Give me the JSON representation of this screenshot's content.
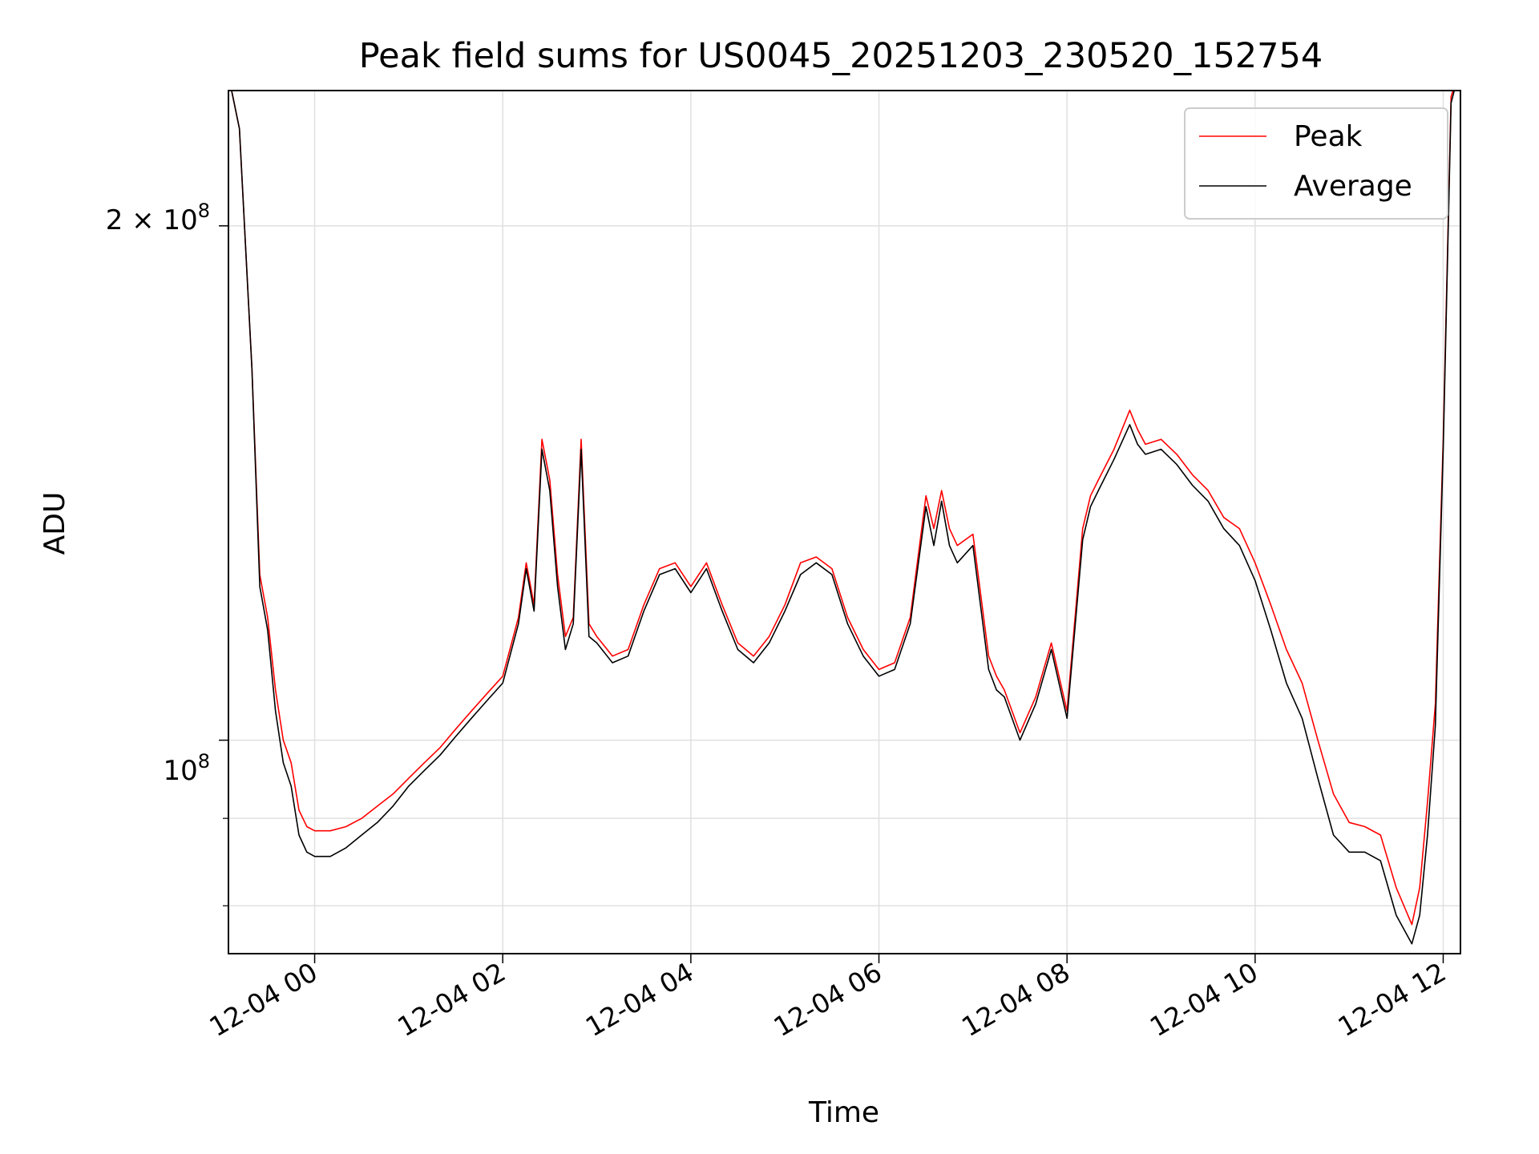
{
  "chart_data": {
    "type": "line",
    "title": "Peak field sums for US0045_20251203_230520_152754",
    "xlabel": "Time",
    "ylabel": "ADU",
    "yscale": "log",
    "xlim": [
      "12-03 23:05",
      "12-04 12:11"
    ],
    "ylim": [
      75000000,
      240000000
    ],
    "grid": true,
    "legend_position": "top-right",
    "x_ticks": [
      "12-04 00",
      "12-04 02",
      "12-04 04",
      "12-04 06",
      "12-04 08",
      "12-04 10",
      "12-04 12"
    ],
    "y_tick_labels": {
      "major_2e8": "2 × 10",
      "major_2e8_exp": "8",
      "major_1e8": "10",
      "major_1e8_exp": "8"
    },
    "series": [
      {
        "name": "Peak",
        "color": "#ff0000",
        "x": [
          "12-03 23:05",
          "12-03 23:12",
          "12-03 23:20",
          "12-03 23:25",
          "12-03 23:30",
          "12-03 23:35",
          "12-03 23:40",
          "12-03 23:45",
          "12-03 23:50",
          "12-03 23:55",
          "12-04 00:00",
          "12-04 00:10",
          "12-04 00:20",
          "12-04 00:30",
          "12-04 00:40",
          "12-04 00:50",
          "12-04 01:00",
          "12-04 01:10",
          "12-04 01:20",
          "12-04 01:30",
          "12-04 01:40",
          "12-04 01:50",
          "12-04 02:00",
          "12-04 02:10",
          "12-04 02:15",
          "12-04 02:20",
          "12-04 02:25",
          "12-04 02:30",
          "12-04 02:35",
          "12-04 02:40",
          "12-04 02:45",
          "12-04 02:50",
          "12-04 02:55",
          "12-04 03:00",
          "12-04 03:10",
          "12-04 03:20",
          "12-04 03:30",
          "12-04 03:40",
          "12-04 03:50",
          "12-04 04:00",
          "12-04 04:10",
          "12-04 04:20",
          "12-04 04:30",
          "12-04 04:40",
          "12-04 04:50",
          "12-04 05:00",
          "12-04 05:10",
          "12-04 05:20",
          "12-04 05:30",
          "12-04 05:40",
          "12-04 05:50",
          "12-04 06:00",
          "12-04 06:10",
          "12-04 06:20",
          "12-04 06:30",
          "12-04 06:35",
          "12-04 06:40",
          "12-04 06:45",
          "12-04 06:50",
          "12-04 07:00",
          "12-04 07:10",
          "12-04 07:15",
          "12-04 07:20",
          "12-04 07:30",
          "12-04 07:40",
          "12-04 07:50",
          "12-04 08:00",
          "12-04 08:10",
          "12-04 08:15",
          "12-04 08:20",
          "12-04 08:30",
          "12-04 08:40",
          "12-04 08:45",
          "12-04 08:50",
          "12-04 09:00",
          "12-04 09:10",
          "12-04 09:20",
          "12-04 09:30",
          "12-04 09:40",
          "12-04 09:50",
          "12-04 10:00",
          "12-04 10:10",
          "12-04 10:20",
          "12-04 10:30",
          "12-04 10:40",
          "12-04 10:50",
          "12-04 11:00",
          "12-04 11:10",
          "12-04 11:20",
          "12-04 11:30",
          "12-04 11:40",
          "12-04 11:45",
          "12-04 11:50",
          "12-04 11:55",
          "12-04 12:00",
          "12-04 12:05",
          "12-04 12:11"
        ],
        "values": [
          245000000,
          228000000,
          165000000,
          125000000,
          118000000,
          107000000,
          100000000,
          97000000,
          91000000,
          89000000,
          88500000,
          88500000,
          89000000,
          90000000,
          91500000,
          93000000,
          95000000,
          97000000,
          99000000,
          101500000,
          104000000,
          106500000,
          109000000,
          118000000,
          127000000,
          120000000,
          150000000,
          142000000,
          125000000,
          115000000,
          118000000,
          150000000,
          117000000,
          115000000,
          112000000,
          113000000,
          120000000,
          126000000,
          127000000,
          123000000,
          127000000,
          120000000,
          114000000,
          112000000,
          115000000,
          120000000,
          127000000,
          128000000,
          126000000,
          118000000,
          113000000,
          110000000,
          111000000,
          118000000,
          139000000,
          133000000,
          140000000,
          133000000,
          130000000,
          132000000,
          112000000,
          109000000,
          107000000,
          101000000,
          106000000,
          114000000,
          104000000,
          133000000,
          139000000,
          142000000,
          148000000,
          156000000,
          152000000,
          149000000,
          150000000,
          147000000,
          143000000,
          140000000,
          135000000,
          133000000,
          127000000,
          120000000,
          113000000,
          108000000,
          100000000,
          93000000,
          89500000,
          89000000,
          88000000,
          82000000,
          78000000,
          82000000,
          92000000,
          105000000,
          150000000,
          238000000,
          248000000
        ]
      },
      {
        "name": "Average",
        "color": "#000000",
        "x": [
          "12-03 23:05",
          "12-03 23:12",
          "12-03 23:20",
          "12-03 23:25",
          "12-03 23:30",
          "12-03 23:35",
          "12-03 23:40",
          "12-03 23:45",
          "12-03 23:50",
          "12-03 23:55",
          "12-04 00:00",
          "12-04 00:10",
          "12-04 00:20",
          "12-04 00:30",
          "12-04 00:40",
          "12-04 00:50",
          "12-04 01:00",
          "12-04 01:10",
          "12-04 01:20",
          "12-04 01:30",
          "12-04 01:40",
          "12-04 01:50",
          "12-04 02:00",
          "12-04 02:10",
          "12-04 02:15",
          "12-04 02:20",
          "12-04 02:25",
          "12-04 02:30",
          "12-04 02:35",
          "12-04 02:40",
          "12-04 02:45",
          "12-04 02:50",
          "12-04 02:55",
          "12-04 03:00",
          "12-04 03:10",
          "12-04 03:20",
          "12-04 03:30",
          "12-04 03:40",
          "12-04 03:50",
          "12-04 04:00",
          "12-04 04:10",
          "12-04 04:20",
          "12-04 04:30",
          "12-04 04:40",
          "12-04 04:50",
          "12-04 05:00",
          "12-04 05:10",
          "12-04 05:20",
          "12-04 05:30",
          "12-04 05:40",
          "12-04 05:50",
          "12-04 06:00",
          "12-04 06:10",
          "12-04 06:20",
          "12-04 06:30",
          "12-04 06:35",
          "12-04 06:40",
          "12-04 06:45",
          "12-04 06:50",
          "12-04 07:00",
          "12-04 07:10",
          "12-04 07:15",
          "12-04 07:20",
          "12-04 07:30",
          "12-04 07:40",
          "12-04 07:50",
          "12-04 08:00",
          "12-04 08:10",
          "12-04 08:15",
          "12-04 08:20",
          "12-04 08:30",
          "12-04 08:40",
          "12-04 08:45",
          "12-04 08:50",
          "12-04 09:00",
          "12-04 09:10",
          "12-04 09:20",
          "12-04 09:30",
          "12-04 09:40",
          "12-04 09:50",
          "12-04 10:00",
          "12-04 10:10",
          "12-04 10:20",
          "12-04 10:30",
          "12-04 10:40",
          "12-04 10:50",
          "12-04 11:00",
          "12-04 11:10",
          "12-04 11:20",
          "12-04 11:30",
          "12-04 11:40",
          "12-04 11:45",
          "12-04 11:50",
          "12-04 11:55",
          "12-04 12:00",
          "12-04 12:05",
          "12-04 12:11"
        ],
        "values": [
          245000000,
          228000000,
          165000000,
          123000000,
          116000000,
          104000000,
          97000000,
          94000000,
          88000000,
          86000000,
          85500000,
          85500000,
          86500000,
          88000000,
          89500000,
          91500000,
          94000000,
          96000000,
          98000000,
          100500000,
          103000000,
          105500000,
          108000000,
          117000000,
          126000000,
          119000000,
          148000000,
          140000000,
          123000000,
          113000000,
          117000000,
          148000000,
          115000000,
          114000000,
          111000000,
          112000000,
          119000000,
          125000000,
          126000000,
          122000000,
          126000000,
          119000000,
          113000000,
          111000000,
          114000000,
          119000000,
          125000000,
          127000000,
          125000000,
          117000000,
          112000000,
          109000000,
          110000000,
          117000000,
          137000000,
          130000000,
          138000000,
          130000000,
          127000000,
          130000000,
          110000000,
          107000000,
          106000000,
          100000000,
          105000000,
          113000000,
          103000000,
          131000000,
          137000000,
          140000000,
          146000000,
          153000000,
          149000000,
          147000000,
          148000000,
          145000000,
          141000000,
          138000000,
          133000000,
          130000000,
          124000000,
          116000000,
          108000000,
          103000000,
          95000000,
          88000000,
          86000000,
          86000000,
          85000000,
          79000000,
          76000000,
          79000000,
          88000000,
          102000000,
          148000000,
          236000000,
          248000000
        ]
      }
    ]
  }
}
